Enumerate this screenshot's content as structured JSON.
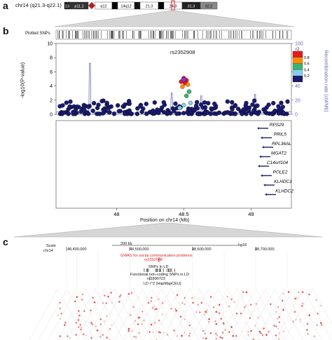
{
  "panels": {
    "a": "a",
    "b": "b",
    "c": "c"
  },
  "panel_a": {
    "chromosome_label": "chr14 (q21.3-q22.1)",
    "bands": [
      {
        "label": "13",
        "color": "#222"
      },
      {
        "label": "p11.2",
        "color": "#333"
      },
      {
        "label": "",
        "color": "#b02020"
      },
      {
        "label": "q12",
        "color": "#fff"
      },
      {
        "label": "",
        "color": "#000"
      },
      {
        "label": "14q12",
        "color": "#fff"
      },
      {
        "label": "",
        "color": "#111"
      },
      {
        "label": "21.3",
        "color": "#fff"
      },
      {
        "label": "",
        "color": "#000"
      },
      {
        "label": "24.3",
        "color": "#fff"
      },
      {
        "label": "31.3",
        "color": "#222"
      },
      {
        "label": "32.2",
        "color": "#888"
      }
    ]
  },
  "panel_b": {
    "plotted_snps_label": "Plotted SNPs",
    "lead_snp": "rs2352908",
    "y_label": "-log10(P-value)",
    "y2_label": "Recombination rate (cM/Mb)",
    "x_label": "Position on chr14 (Mb)",
    "y_ticks": [
      "0",
      "2",
      "4",
      "6",
      "8",
      "10"
    ],
    "y2_ticks": [
      "0",
      "20",
      "40",
      "60",
      "80",
      "100"
    ],
    "x_ticks": [
      "48",
      "48.5",
      "49"
    ],
    "legend_title": "r2",
    "legend_ticks": [
      "0.8",
      "0.6",
      "0.4",
      "0.2"
    ],
    "legend_colors": [
      "#e31a1c",
      "#ff8c00",
      "#3cb371",
      "#87ceeb",
      "#1a1a6e"
    ],
    "genes": [
      {
        "name": "RPS29"
      },
      {
        "name": "PRIL5"
      },
      {
        "name": "RPL36AL"
      },
      {
        "name": "MGAT2"
      },
      {
        "name": "C14orf104"
      },
      {
        "name": "POLE2"
      },
      {
        "name": "KLHDC1"
      },
      {
        "name": "KLHDC2"
      }
    ]
  },
  "panel_c": {
    "scale_label": "Scale",
    "chr_label": "chr14",
    "scale_value": "200 kb",
    "assembly": "hg18",
    "positions": [
      "48,400,000",
      "48,500,000",
      "48,600,000",
      "48,700,000"
    ],
    "gwas_track": "GWAS for social communication problems",
    "gwas_snp": "rs2352908",
    "snps_ld": "SNPs in LD",
    "functional": "Functional non-coding SNPs in LD",
    "functional_snp": "rs1890723",
    "ld_track": "LD r^2 (HapMapCEU)"
  },
  "colors": {
    "recomb": "#6a6ab8",
    "dot": "#1e1e6e",
    "gwas_red": "#d22",
    "ld_red": "#e02020"
  },
  "chart_data": {
    "type": "scatter",
    "title": "rs2352908",
    "xlabel": "Position on chr14 (Mb)",
    "ylabel": "-log10(P-value)",
    "xlim": [
      47.55,
      49.3
    ],
    "ylim": [
      0,
      10
    ],
    "y2lim": [
      0,
      100
    ],
    "lead_snp": {
      "x": 48.5,
      "y": 4.9,
      "r2": 1.0
    },
    "ld_snps": [
      {
        "x": 48.48,
        "y": 4.6,
        "r2": 0.9
      },
      {
        "x": 48.5,
        "y": 5.1,
        "r2": 0.95
      },
      {
        "x": 48.52,
        "y": 4.8,
        "r2": 0.9
      },
      {
        "x": 48.51,
        "y": 4.4,
        "r2": 0.85
      },
      {
        "x": 48.53,
        "y": 4.2,
        "r2": 0.7
      },
      {
        "x": 48.49,
        "y": 3.9,
        "r2": 0.75
      },
      {
        "x": 48.54,
        "y": 3.2,
        "r2": 0.5
      },
      {
        "x": 48.52,
        "y": 2.6,
        "r2": 0.45
      },
      {
        "x": 48.5,
        "y": 1.3,
        "r2": 0.25
      },
      {
        "x": 48.47,
        "y": 0.9,
        "r2": 0.3
      },
      {
        "x": 48.55,
        "y": 1.6,
        "r2": 0.35
      }
    ],
    "recombination_peaks": [
      {
        "x": 47.8,
        "y": 72
      },
      {
        "x": 48.41,
        "y": 30
      },
      {
        "x": 48.63,
        "y": 26
      },
      {
        "x": 48.86,
        "y": 18
      },
      {
        "x": 49.03,
        "y": 28
      }
    ]
  }
}
